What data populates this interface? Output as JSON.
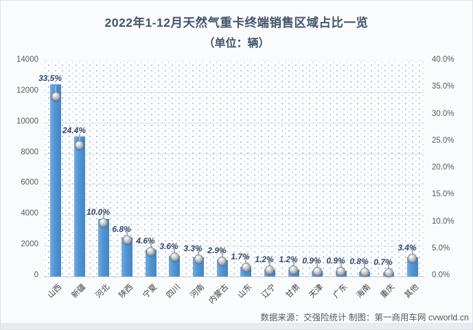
{
  "header": {
    "title_line1": "2022年1-12月天然气重卡终端销售区域占比一览",
    "title_line2": "（单位：辆）"
  },
  "footer": {
    "source": "数据来源：交强险统计 制图：第一商用车网 cvworld.cn"
  },
  "chart_data": {
    "type": "bar",
    "title": "2022年1-12月天然气重卡终端销售区域占比一览",
    "subtitle": "（单位：辆）",
    "categories": [
      "山西",
      "新疆",
      "河北",
      "陕西",
      "宁夏",
      "四川",
      "河南",
      "内蒙古",
      "山东",
      "辽宁",
      "甘肃",
      "天津",
      "广东",
      "海南",
      "重庆",
      "其他"
    ],
    "series": [
      {
        "name": "sales_units_bar",
        "render": "bar",
        "axis": "left",
        "values": [
          12500,
          9100,
          3730,
          2540,
          1720,
          1340,
          1230,
          1080,
          630,
          450,
          450,
          340,
          340,
          300,
          260,
          1270
        ]
      },
      {
        "name": "share_percent_marker",
        "render": "scatter",
        "axis": "right",
        "values": [
          33.5,
          24.4,
          10.0,
          6.8,
          4.6,
          3.6,
          3.3,
          2.9,
          1.7,
          1.2,
          1.2,
          0.9,
          0.9,
          0.8,
          0.7,
          3.4
        ],
        "labels": [
          "33.5%",
          "24.4%",
          "10.0%",
          "6.8%",
          "4.6%",
          "3.6%",
          "3.3%",
          "2.9%",
          "1.7%",
          "1.2%",
          "1.2%",
          "0.9%",
          "0.9%",
          "0.8%",
          "0.7%",
          "3.4%"
        ]
      }
    ],
    "left_axis": {
      "min": 0,
      "max": 14000,
      "ticks": [
        "14000",
        "12000",
        "10000",
        "8000",
        "6000",
        "4000",
        "2000",
        "0"
      ]
    },
    "right_axis": {
      "min": 0,
      "max": 40,
      "ticks": [
        "40.0%",
        "35.0%",
        "30.0%",
        "25.0%",
        "20.0%",
        "15.0%",
        "10.0%",
        "5.0%",
        "0.0%"
      ]
    },
    "grid": true,
    "legend": "none",
    "colors": {
      "bar": "#4f95d3",
      "marker": "#9ea3a8",
      "data_label": "#35466b",
      "title": "#44546a",
      "axis_text": "#595959",
      "plot_dots": "#6496d2",
      "gridline": "#d9dee5"
    }
  }
}
